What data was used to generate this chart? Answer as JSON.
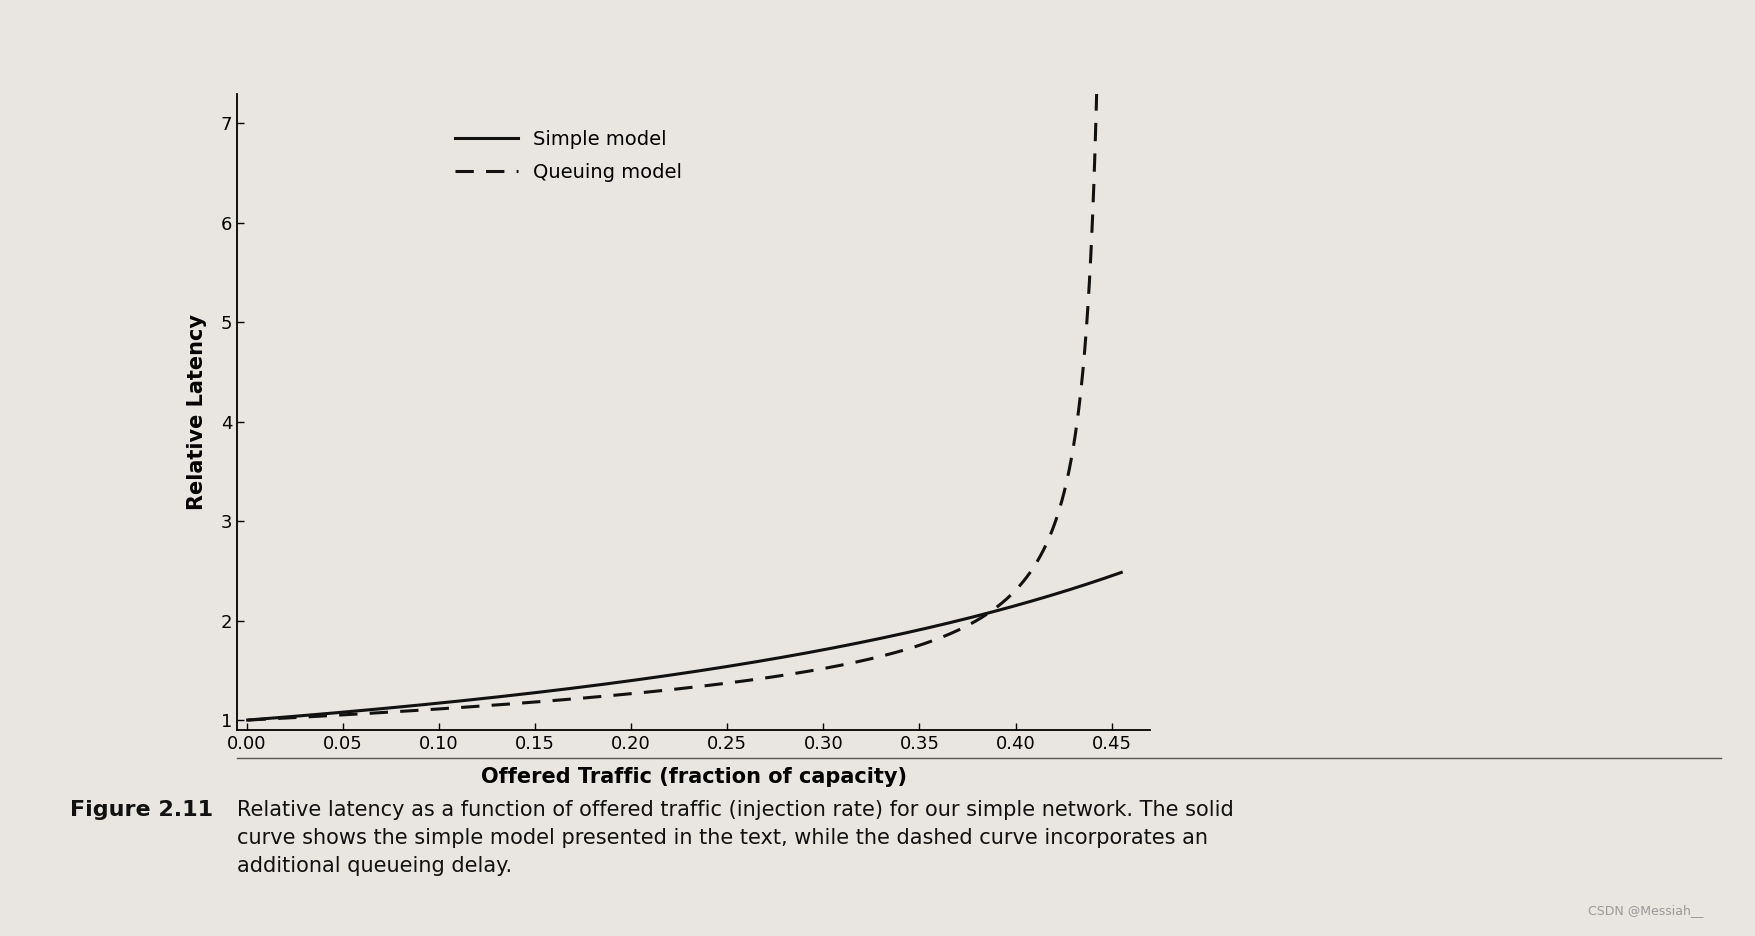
{
  "bg_color": "#e9e5e0",
  "line_color": "#111111",
  "xlabel": "Offered Traffic (fraction of capacity)",
  "ylabel": "Relative Latency",
  "xlim": [
    -0.005,
    0.47
  ],
  "ylim": [
    0.9,
    7.3
  ],
  "xticks": [
    0.0,
    0.05,
    0.1,
    0.15,
    0.2,
    0.25,
    0.3,
    0.35,
    0.4,
    0.45
  ],
  "yticks": [
    1,
    2,
    3,
    4,
    5,
    6,
    7
  ],
  "legend_labels": [
    "Simple model",
    "Queuing model"
  ],
  "caption_bold": "Figure 2.11",
  "caption_text": "Relative latency as a function of offered traffic (injection rate) for our simple network. The solid curve shows the simple model presented in the text, while the dashed curve incorporates an additional queueing delay.",
  "figsize": [
    17.56,
    9.36
  ],
  "dpi": 100,
  "font_size_axis_label": 15,
  "font_size_tick": 13,
  "font_size_legend": 14,
  "font_size_caption_bold": 16,
  "font_size_caption_text": 15
}
